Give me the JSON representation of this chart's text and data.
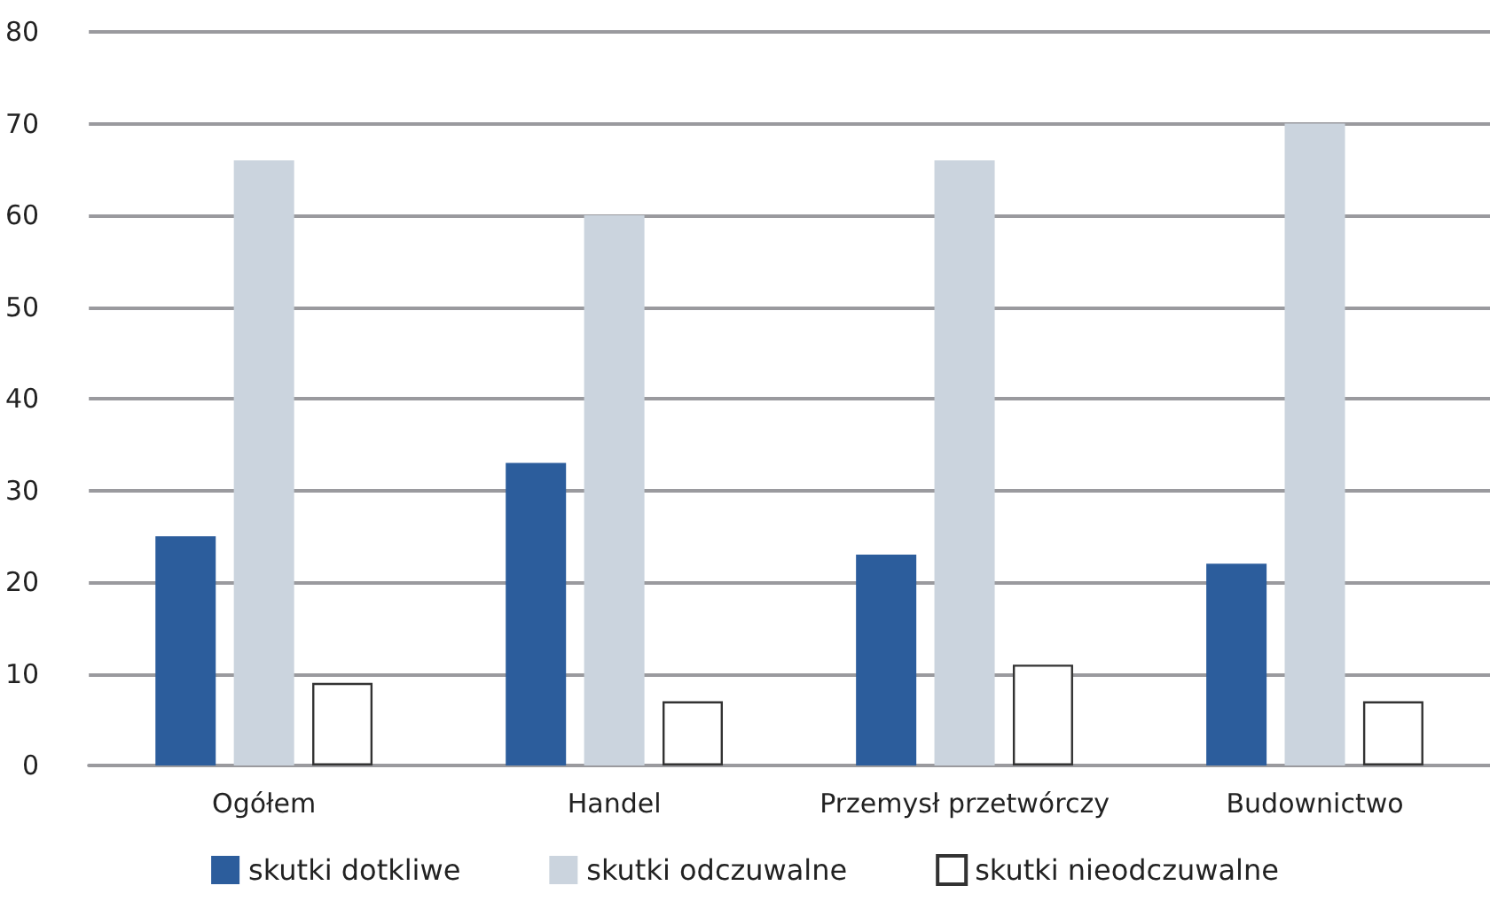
{
  "chart_data": {
    "type": "bar",
    "categories": [
      "Ogółem",
      "Handel",
      "Przemysł przetwórczy",
      "Budownictwo"
    ],
    "series": [
      {
        "name": "skutki dotkliwe",
        "color": "#2c5d9c",
        "values": [
          25,
          33,
          23,
          22
        ]
      },
      {
        "name": "skutki odczuwalne",
        "color": "#cbd4de",
        "values": [
          66,
          60,
          66,
          70
        ]
      },
      {
        "name": "skutki nieodczuwalne",
        "color": "#ffffff",
        "values": [
          9,
          7,
          11,
          7
        ]
      }
    ],
    "ylim": [
      0,
      80
    ],
    "yticks": [
      0,
      10,
      20,
      30,
      40,
      50,
      60,
      70,
      80
    ],
    "grid": "y",
    "legend": "bottom"
  }
}
